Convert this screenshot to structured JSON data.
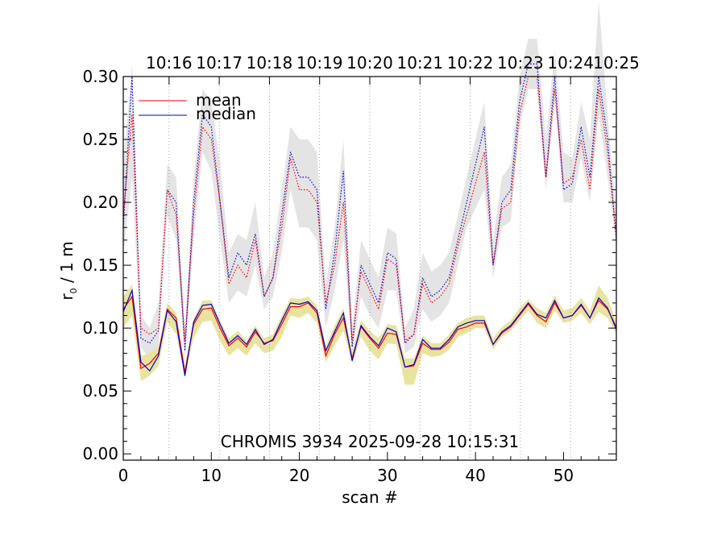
{
  "chart_data": {
    "type": "line",
    "title": "CHROMIS 3934 2025-09-28 10:15:31",
    "xlabel": "scan #",
    "ylabel_main": "r",
    "ylabel_sub": "0",
    "ylabel_rest": " / 1 m",
    "xlim": [
      0,
      56
    ],
    "ylim": [
      -0.005,
      0.3
    ],
    "x_ticks": [
      0,
      10,
      20,
      30,
      40,
      50
    ],
    "x_tick_labels": [
      "0",
      "10",
      "20",
      "30",
      "40",
      "50"
    ],
    "y_ticks": [
      0.0,
      0.05,
      0.1,
      0.15,
      0.2,
      0.25,
      0.3
    ],
    "y_tick_labels": [
      "0.00",
      "0.05",
      "0.10",
      "0.15",
      "0.20",
      "0.25",
      "0.30"
    ],
    "time_ticks": [
      {
        "x": 5.2,
        "label": "10:16"
      },
      {
        "x": 10.9,
        "label": "10:17"
      },
      {
        "x": 16.6,
        "label": "10:18"
      },
      {
        "x": 22.3,
        "label": "10:19"
      },
      {
        "x": 28.0,
        "label": "10:20"
      },
      {
        "x": 33.7,
        "label": "10:21"
      },
      {
        "x": 39.4,
        "label": "10:22"
      },
      {
        "x": 45.1,
        "label": "10:23"
      },
      {
        "x": 50.8,
        "label": "10:24"
      },
      {
        "x": 56.0,
        "label": "10:25"
      }
    ],
    "legend": [
      {
        "name": "mean",
        "color": "#ff0000"
      },
      {
        "name": "median",
        "color": "#0000cc"
      }
    ],
    "colors": {
      "mean": "#ff0000",
      "median": "#0000cc",
      "low_band": "#e8e4a0",
      "high_band": "#e4e4e4",
      "grid": "#888888"
    },
    "x": [
      0,
      1,
      2,
      3,
      4,
      5,
      6,
      7,
      8,
      9,
      10,
      11,
      12,
      13,
      14,
      15,
      16,
      17,
      18,
      19,
      20,
      21,
      22,
      23,
      24,
      25,
      26,
      27,
      28,
      29,
      30,
      31,
      32,
      33,
      34,
      35,
      36,
      37,
      38,
      39,
      40,
      41,
      42,
      43,
      44,
      45,
      46,
      47,
      48,
      49,
      50,
      51,
      52,
      53,
      54,
      55,
      56
    ],
    "series": [
      {
        "name": "median (high)",
        "style": "dotted",
        "color": "#0000cc",
        "values": [
          0.18,
          0.3,
          0.092,
          0.088,
          0.098,
          0.21,
          0.2,
          0.082,
          0.2,
          0.27,
          0.26,
          0.2,
          0.14,
          0.16,
          0.15,
          0.175,
          0.125,
          0.14,
          0.19,
          0.24,
          0.22,
          0.22,
          0.21,
          0.115,
          0.16,
          0.225,
          0.085,
          0.15,
          0.135,
          0.12,
          0.16,
          0.155,
          0.088,
          0.095,
          0.14,
          0.125,
          0.13,
          0.14,
          0.17,
          0.2,
          0.23,
          0.26,
          0.15,
          0.2,
          0.21,
          0.28,
          0.31,
          0.31,
          0.22,
          0.3,
          0.21,
          0.215,
          0.26,
          0.22,
          0.3,
          0.25,
          0.17
        ]
      },
      {
        "name": "mean (high)",
        "style": "dotted",
        "color": "#ff0000",
        "values": [
          0.19,
          0.27,
          0.1,
          0.095,
          0.1,
          0.21,
          0.19,
          0.09,
          0.19,
          0.26,
          0.25,
          0.2,
          0.135,
          0.15,
          0.14,
          0.17,
          0.125,
          0.14,
          0.18,
          0.235,
          0.21,
          0.21,
          0.2,
          0.12,
          0.15,
          0.2,
          0.09,
          0.145,
          0.13,
          0.115,
          0.155,
          0.15,
          0.09,
          0.095,
          0.135,
          0.12,
          0.125,
          0.135,
          0.165,
          0.19,
          0.215,
          0.24,
          0.15,
          0.195,
          0.2,
          0.27,
          0.3,
          0.3,
          0.22,
          0.29,
          0.215,
          0.22,
          0.25,
          0.21,
          0.29,
          0.24,
          0.175
        ]
      },
      {
        "name": "mean",
        "style": "solid",
        "color": "#ff0000",
        "values": [
          0.115,
          0.125,
          0.068,
          0.072,
          0.08,
          0.115,
          0.108,
          0.065,
          0.103,
          0.115,
          0.116,
          0.1,
          0.086,
          0.092,
          0.085,
          0.097,
          0.088,
          0.09,
          0.103,
          0.117,
          0.117,
          0.12,
          0.112,
          0.078,
          0.095,
          0.108,
          0.076,
          0.101,
          0.092,
          0.084,
          0.096,
          0.095,
          0.069,
          0.07,
          0.088,
          0.083,
          0.083,
          0.089,
          0.099,
          0.101,
          0.104,
          0.104,
          0.087,
          0.096,
          0.101,
          0.11,
          0.119,
          0.11,
          0.105,
          0.12,
          0.108,
          0.11,
          0.118,
          0.108,
          0.122,
          0.115,
          0.101
        ]
      },
      {
        "name": "median",
        "style": "solid",
        "color": "#0000cc",
        "values": [
          0.113,
          0.13,
          0.073,
          0.066,
          0.078,
          0.114,
          0.105,
          0.062,
          0.105,
          0.118,
          0.119,
          0.103,
          0.088,
          0.094,
          0.087,
          0.099,
          0.087,
          0.091,
          0.106,
          0.12,
          0.119,
          0.121,
          0.114,
          0.082,
          0.097,
          0.112,
          0.074,
          0.102,
          0.093,
          0.086,
          0.1,
          0.097,
          0.069,
          0.071,
          0.091,
          0.084,
          0.084,
          0.091,
          0.101,
          0.104,
          0.106,
          0.106,
          0.087,
          0.097,
          0.102,
          0.111,
          0.12,
          0.111,
          0.108,
          0.122,
          0.108,
          0.11,
          0.119,
          0.108,
          0.124,
          0.116,
          0.099
        ]
      }
    ],
    "bands": [
      {
        "name": "high spread",
        "color": "#e4e4e4",
        "lower": [
          0.16,
          0.22,
          0.085,
          0.075,
          0.085,
          0.19,
          0.17,
          0.075,
          0.17,
          0.24,
          0.225,
          0.17,
          0.12,
          0.13,
          0.125,
          0.15,
          0.115,
          0.125,
          0.16,
          0.21,
          0.18,
          0.18,
          0.17,
          0.1,
          0.13,
          0.17,
          0.08,
          0.125,
          0.11,
          0.1,
          0.13,
          0.13,
          0.08,
          0.085,
          0.115,
          0.105,
          0.11,
          0.12,
          0.15,
          0.18,
          0.195,
          0.21,
          0.14,
          0.18,
          0.185,
          0.26,
          0.29,
          0.29,
          0.21,
          0.28,
          0.2,
          0.2,
          0.235,
          0.2,
          0.27,
          0.22,
          0.165
        ],
        "upper": [
          0.23,
          0.31,
          0.11,
          0.1,
          0.12,
          0.23,
          0.22,
          0.1,
          0.22,
          0.29,
          0.28,
          0.23,
          0.16,
          0.175,
          0.17,
          0.2,
          0.14,
          0.16,
          0.21,
          0.26,
          0.25,
          0.25,
          0.24,
          0.135,
          0.18,
          0.25,
          0.1,
          0.17,
          0.155,
          0.14,
          0.18,
          0.175,
          0.1,
          0.115,
          0.16,
          0.145,
          0.15,
          0.16,
          0.19,
          0.22,
          0.25,
          0.28,
          0.17,
          0.22,
          0.23,
          0.3,
          0.33,
          0.33,
          0.25,
          0.32,
          0.24,
          0.235,
          0.28,
          0.25,
          0.36,
          0.27,
          0.19
        ]
      },
      {
        "name": "low spread",
        "color": "#e8e4a0",
        "lower": [
          0.1,
          0.11,
          0.058,
          0.062,
          0.07,
          0.105,
          0.095,
          0.062,
          0.092,
          0.105,
          0.106,
          0.09,
          0.078,
          0.084,
          0.078,
          0.088,
          0.08,
          0.082,
          0.093,
          0.11,
          0.108,
          0.112,
          0.104,
          0.073,
          0.086,
          0.098,
          0.072,
          0.093,
          0.082,
          0.075,
          0.088,
          0.087,
          0.055,
          0.055,
          0.08,
          0.077,
          0.078,
          0.083,
          0.093,
          0.096,
          0.1,
          0.1,
          0.083,
          0.093,
          0.098,
          0.106,
          0.114,
          0.104,
          0.1,
          0.114,
          0.104,
          0.106,
          0.112,
          0.103,
          0.113,
          0.108,
          0.095
        ],
        "upper": [
          0.125,
          0.135,
          0.078,
          0.08,
          0.085,
          0.12,
          0.112,
          0.07,
          0.108,
          0.122,
          0.122,
          0.106,
          0.092,
          0.098,
          0.09,
          0.102,
          0.092,
          0.095,
          0.11,
          0.124,
          0.123,
          0.125,
          0.118,
          0.086,
          0.102,
          0.116,
          0.082,
          0.106,
          0.098,
          0.092,
          0.103,
          0.102,
          0.076,
          0.076,
          0.094,
          0.088,
          0.088,
          0.095,
          0.104,
          0.108,
          0.11,
          0.11,
          0.092,
          0.101,
          0.106,
          0.116,
          0.123,
          0.116,
          0.112,
          0.126,
          0.114,
          0.116,
          0.124,
          0.114,
          0.134,
          0.124,
          0.105
        ]
      }
    ]
  }
}
